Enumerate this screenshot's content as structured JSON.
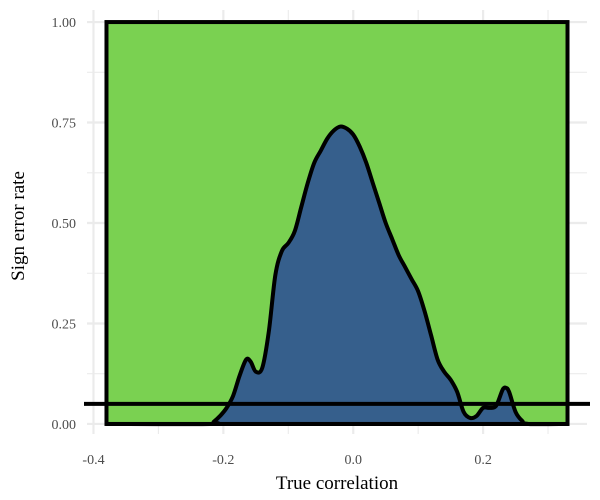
{
  "chart_data": {
    "type": "area",
    "xlabel": "True correlation",
    "ylabel": "Sign error rate",
    "xlim": [
      -0.41,
      0.36
    ],
    "ylim": [
      -0.025,
      1.03
    ],
    "x_ticks": [
      -0.4,
      -0.2,
      0.0,
      0.2
    ],
    "x_tick_labels": [
      "-0.4",
      "-0.2",
      "0.0",
      "0.2"
    ],
    "y_ticks": [
      0.0,
      0.25,
      0.5,
      0.75,
      1.0
    ],
    "y_tick_labels": [
      "0.00",
      "0.25",
      "0.50",
      "0.75",
      "1.00"
    ],
    "grid": true,
    "background_region": {
      "x": [
        -0.38,
        0.33
      ],
      "y": [
        0,
        1
      ],
      "color": "#7ad151"
    },
    "reference_line": {
      "y": 0.05,
      "color": "#000000"
    },
    "series": [
      {
        "color": "#365f8c",
        "x": [
          -0.38,
          -0.22,
          -0.215,
          -0.205,
          -0.195,
          -0.185,
          -0.175,
          -0.165,
          -0.158,
          -0.15,
          -0.14,
          -0.13,
          -0.12,
          -0.11,
          -0.1,
          -0.09,
          -0.08,
          -0.07,
          -0.06,
          -0.05,
          -0.04,
          -0.03,
          -0.02,
          -0.01,
          0.0,
          0.01,
          0.02,
          0.03,
          0.04,
          0.05,
          0.06,
          0.07,
          0.08,
          0.09,
          0.1,
          0.11,
          0.12,
          0.13,
          0.14,
          0.15,
          0.16,
          0.17,
          0.18,
          0.19,
          0.2,
          0.21,
          0.22,
          0.23,
          0.235,
          0.24,
          0.25,
          0.26,
          0.27,
          0.33
        ],
        "values": [
          0.0,
          0.0,
          0.005,
          0.02,
          0.04,
          0.07,
          0.12,
          0.16,
          0.155,
          0.13,
          0.14,
          0.23,
          0.37,
          0.43,
          0.45,
          0.48,
          0.54,
          0.6,
          0.65,
          0.68,
          0.71,
          0.73,
          0.74,
          0.735,
          0.72,
          0.69,
          0.65,
          0.6,
          0.55,
          0.5,
          0.46,
          0.42,
          0.39,
          0.36,
          0.33,
          0.28,
          0.22,
          0.16,
          0.13,
          0.11,
          0.08,
          0.03,
          0.015,
          0.02,
          0.04,
          0.04,
          0.045,
          0.085,
          0.09,
          0.08,
          0.03,
          0.008,
          0.0,
          0.0
        ]
      }
    ]
  }
}
